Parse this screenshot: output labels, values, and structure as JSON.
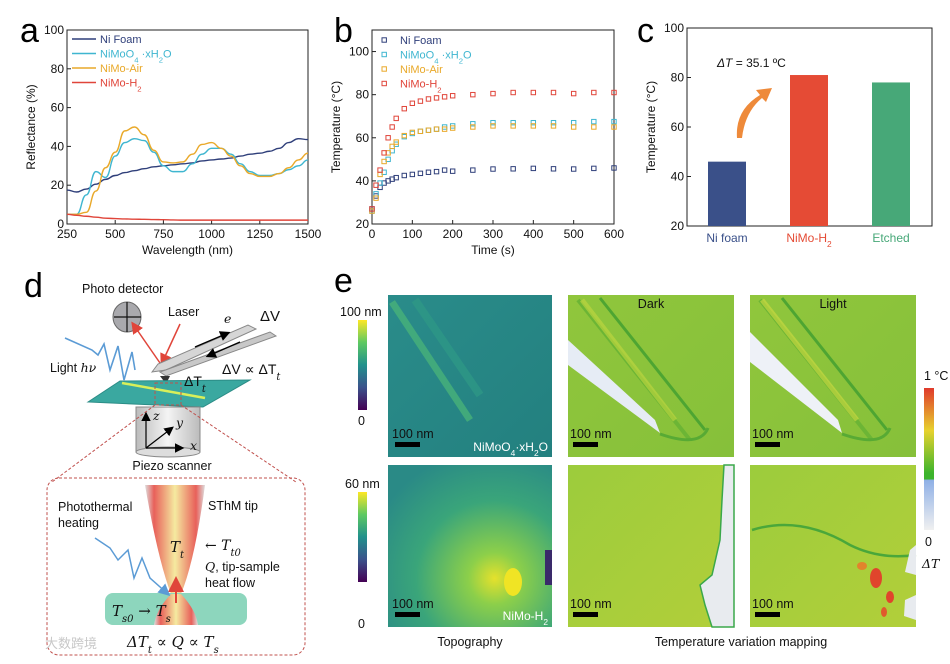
{
  "panels": {
    "a": "a",
    "b": "b",
    "c": "c",
    "d": "d",
    "e": "e"
  },
  "chart_data": [
    {
      "type": "line",
      "title": "",
      "xlabel": "Wavelength (nm)",
      "ylabel": "Reflectance (%)",
      "xlim": [
        250,
        1500
      ],
      "ylim": [
        0,
        100
      ],
      "xticks": [
        250,
        500,
        750,
        1000,
        1250,
        1500
      ],
      "yticks": [
        0,
        20,
        40,
        60,
        80,
        100
      ],
      "legend": "top-left",
      "x": [
        250,
        300,
        350,
        400,
        450,
        500,
        550,
        600,
        650,
        700,
        750,
        800,
        850,
        900,
        950,
        1000,
        1050,
        1100,
        1150,
        1200,
        1250,
        1300,
        1350,
        1400,
        1450,
        1500
      ],
      "series": [
        {
          "name": "Ni Foam",
          "label": [
            [
              "Ni Foam",
              0
            ]
          ],
          "color": "#2f3f7a",
          "values": [
            17.5,
            16.5,
            18,
            20.5,
            23,
            25,
            26.5,
            27.5,
            28.5,
            29.5,
            30,
            30.5,
            31,
            31.5,
            32.5,
            33,
            33.5,
            34,
            35,
            36,
            36.5,
            37.5,
            39,
            42,
            44,
            43.5
          ]
        },
        {
          "name": "NiMoO4·xH2O",
          "label": [
            [
              "NiMoO",
              0
            ],
            [
              "4",
              1
            ],
            [
              " ·xH",
              0
            ],
            [
              "2",
              1
            ],
            [
              "O",
              0
            ]
          ],
          "color": "#3fb6d0",
          "values": [
            5,
            5,
            15,
            27,
            24,
            35,
            42,
            44,
            43,
            37,
            30,
            27,
            27,
            31,
            36,
            39,
            39,
            36,
            31,
            27,
            25,
            25,
            26,
            28,
            30,
            33
          ]
        },
        {
          "name": "NiMo-Air",
          "label": [
            [
              "NiMo-Air",
              0
            ]
          ],
          "color": "#e9a92a",
          "values": [
            5,
            5,
            6,
            17,
            29,
            37,
            48,
            50,
            46,
            38,
            32,
            31.5,
            32,
            36,
            41,
            42,
            39,
            35,
            30,
            26,
            24.5,
            24.5,
            26,
            29,
            33,
            36.5
          ]
        },
        {
          "name": "NiMo-H2",
          "label": [
            [
              "NiMo-H",
              0
            ],
            [
              "2",
              1
            ]
          ],
          "color": "#e0453a",
          "values": [
            5,
            4.5,
            4,
            3.5,
            3,
            2.8,
            2.6,
            2.5,
            2.4,
            2.3,
            2.2,
            2.1,
            2,
            2,
            2,
            2,
            2,
            2,
            2,
            2,
            2,
            2,
            2,
            2,
            2,
            2
          ]
        }
      ]
    },
    {
      "type": "scatter",
      "title": "",
      "xlabel": "Time (s)",
      "ylabel": "Temperature (°C)",
      "xlim": [
        0,
        600
      ],
      "ylim": [
        20,
        110
      ],
      "xticks": [
        0,
        100,
        200,
        300,
        400,
        500,
        600
      ],
      "yticks": [
        20,
        40,
        60,
        80,
        100
      ],
      "legend": "top-left",
      "x": [
        0,
        10,
        20,
        30,
        40,
        50,
        60,
        80,
        100,
        120,
        140,
        160,
        180,
        200,
        250,
        300,
        350,
        400,
        450,
        500,
        550,
        600
      ],
      "series": [
        {
          "name": "Ni Foam",
          "label": [
            [
              "Ni Foam",
              0
            ]
          ],
          "color": "#2f3f7a",
          "values": [
            27,
            33,
            37,
            39,
            40,
            40.8,
            41.5,
            42.5,
            43,
            43.5,
            44,
            44.3,
            45,
            44.5,
            45,
            45.5,
            45.6,
            45.8,
            45.6,
            45.5,
            45.8,
            46
          ]
        },
        {
          "name": "NiMoO4·xH2O",
          "label": [
            [
              "NiMoO",
              0
            ],
            [
              "4",
              1
            ],
            [
              " ·xH",
              0
            ],
            [
              "2",
              1
            ],
            [
              "O",
              0
            ]
          ],
          "color": "#3fb6d0",
          "values": [
            26,
            34,
            39,
            44,
            50,
            54,
            57,
            60.5,
            62,
            63,
            63.5,
            64,
            65,
            65.5,
            66.5,
            67,
            67,
            67,
            67,
            67,
            67.5,
            67.5
          ]
        },
        {
          "name": "NiMo-Air",
          "label": [
            [
              "NiMo-Air",
              0
            ]
          ],
          "color": "#e9a92a",
          "values": [
            26,
            32,
            43,
            49,
            53,
            56,
            58,
            61,
            62.5,
            63,
            63.5,
            64,
            64,
            64.5,
            65,
            65.5,
            65.5,
            65.5,
            65.5,
            65,
            65,
            65
          ]
        },
        {
          "name": "NiMo-H2",
          "label": [
            [
              "NiMo-H",
              0
            ],
            [
              "2",
              1
            ]
          ],
          "color": "#e0453a",
          "values": [
            27,
            38,
            45,
            53,
            60,
            65,
            69,
            73.5,
            76,
            77,
            78,
            78.5,
            79,
            79.5,
            80,
            80.5,
            81,
            81,
            81,
            80.5,
            81,
            81
          ]
        }
      ]
    },
    {
      "type": "bar",
      "title": "",
      "xlabel": "",
      "ylabel": "Temperature (°C)",
      "ylim": [
        20,
        100
      ],
      "yticks": [
        20,
        40,
        60,
        80,
        100
      ],
      "categories": [
        {
          "name": "Ni foam",
          "label": [
            [
              "Ni foam",
              0
            ]
          ],
          "color": "#3a5089"
        },
        {
          "name": "NiMo-H2",
          "label": [
            [
              "NiMo-H",
              0
            ],
            [
              "2",
              1
            ]
          ],
          "color": "#e54b35"
        },
        {
          "name": "Etched",
          "label": [
            [
              "Etched",
              0
            ]
          ],
          "color": "#47a878"
        }
      ],
      "values": [
        46,
        81,
        78
      ],
      "annotation": "ΔT = 35.1 ºC",
      "annotation_delta": "ΔT",
      "annotation_value": " = 35.1 ºC"
    }
  ],
  "diagram_d": {
    "photo_detector": "Photo detector",
    "laser": "Laser",
    "e": "e",
    "dv": "ΔV",
    "dv_prop": "ΔV ∝ ΔT",
    "dv_prop_sub": "t",
    "dtt": "ΔT",
    "dtt_sub": "t",
    "light": "Light ",
    "hv": "hν",
    "axis_x": "x",
    "axis_y": "y",
    "axis_z": "z",
    "piezo": "Piezo scanner",
    "photothermal_1": "Photothermal",
    "photothermal_2": "heating",
    "sthm_tip": "SThM tip",
    "tt": "T",
    "tt_sub": "t",
    "tt0": "← T",
    "tt0_sub": "t0",
    "q_line1_q": "Q",
    "q_line1": ", tip-sample",
    "q_line2": "heat flow",
    "ts0": "T",
    "ts0_sub": "s0",
    "ts_arrow": " → T",
    "ts_sub": "s",
    "eq_a": "ΔT",
    "eq_a_sub": "t",
    "eq_b": " ∝ Q ∝ T",
    "eq_b_sub": "s",
    "watermark": "大数跨境"
  },
  "maps_e": {
    "topo_cbar_top_max": "100 nm",
    "topo_cbar_top_min": "0",
    "topo_cbar_bottom_max": "60 nm",
    "topo_cbar_bottom_min": "0",
    "scale_bar": "100 nm",
    "sample_top": [
      [
        "NiMoO",
        0
      ],
      [
        "4",
        1
      ],
      [
        "·xH",
        0
      ],
      [
        "2",
        1
      ],
      [
        "O",
        0
      ]
    ],
    "sample_bottom": [
      [
        "NiMo-H",
        0
      ],
      [
        "2",
        1
      ]
    ],
    "dark": "Dark",
    "light": "Light",
    "temp_cbar_max": "1 °C",
    "temp_cbar_min": "0",
    "temp_cbar_label": "ΔT",
    "caption_topography": "Topography",
    "caption_temperature": "Temperature variation mapping",
    "colors": {
      "light_label": "#e0453a"
    }
  }
}
